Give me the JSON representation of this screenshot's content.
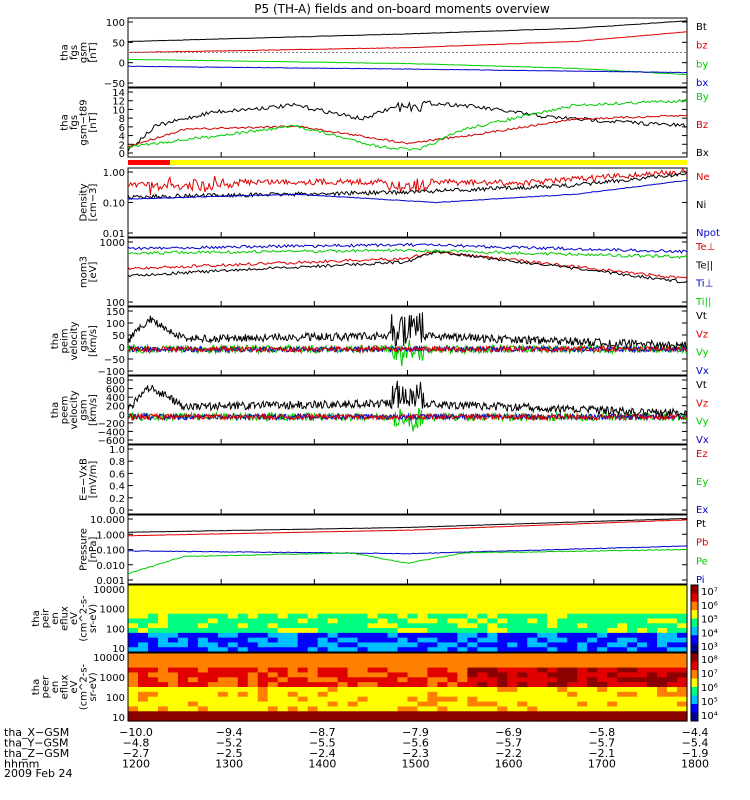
{
  "title": "P5 (TH-A) fields and on-board moments overview",
  "date_label": "2009 Feb 24",
  "panels": [
    {
      "id": "fgs_gsm",
      "ylabel": [
        "tha",
        "fgs",
        "gsm",
        "[nT]"
      ],
      "ticks": [
        "100",
        "50",
        "0",
        "−50"
      ],
      "legend": [
        {
          "label": "Bt",
          "color": "#000000"
        },
        {
          "label": "bz",
          "color": "#dd0000"
        },
        {
          "label": "by",
          "color": "#00cc00"
        },
        {
          "label": "bx",
          "color": "#0000cc"
        }
      ]
    },
    {
      "id": "fgs_t89",
      "ylabel": [
        "tha",
        "fgs",
        "gsm−t89",
        "[nT]"
      ],
      "ticks": [
        "14",
        "12",
        "10",
        "8",
        "6",
        "4",
        "2",
        "0"
      ],
      "legend": [
        {
          "label": "By",
          "color": "#00cc00"
        },
        {
          "label": "Bz",
          "color": "#cc0000"
        },
        {
          "label": "Bx",
          "color": "#000000"
        }
      ]
    },
    {
      "id": "density",
      "ylabel": [
        "Density",
        "[cm−3]"
      ],
      "ticks": [
        "1.00",
        "0.10",
        "0.01"
      ],
      "legend": [
        {
          "label": "Ne",
          "color": "#dd0000"
        },
        {
          "label": "Ni",
          "color": "#000000"
        },
        {
          "label": "Npot",
          "color": "#0000cc"
        }
      ]
    },
    {
      "id": "temp",
      "ylabel": [
        "mom3",
        "[eV]"
      ],
      "ticks": [
        "1000",
        "100"
      ],
      "legend": [
        {
          "label": "Te⊥",
          "color": "#dd0000"
        },
        {
          "label": "Te||",
          "color": "#000000"
        },
        {
          "label": "Ti⊥",
          "color": "#0000cc"
        },
        {
          "label": "Ti||",
          "color": "#00cc00"
        }
      ]
    },
    {
      "id": "peim_vel",
      "ylabel": [
        "tha",
        "peim",
        "velocity",
        "gsm",
        "[km/s]"
      ],
      "ticks": [
        "150",
        "100",
        "50",
        "0",
        "−50",
        "−100"
      ],
      "legend": [
        {
          "label": "Vt",
          "color": "#000000"
        },
        {
          "label": "Vz",
          "color": "#dd0000"
        },
        {
          "label": "Vy",
          "color": "#00cc00"
        },
        {
          "label": "Vx",
          "color": "#0000cc"
        }
      ]
    },
    {
      "id": "peem_vel",
      "ylabel": [
        "tha",
        "peem",
        "velocity",
        "gsm",
        "[km/s]"
      ],
      "ticks": [
        "800",
        "600",
        "400",
        "200",
        "0",
        "−200",
        "−400",
        "−600"
      ],
      "legend": [
        {
          "label": "Vt",
          "color": "#000000"
        },
        {
          "label": "Vz",
          "color": "#dd0000"
        },
        {
          "label": "Vy",
          "color": "#00cc00"
        },
        {
          "label": "Vx",
          "color": "#0000cc"
        }
      ]
    },
    {
      "id": "exb",
      "ylabel": [
        "E=−VxB",
        "[mV/m]"
      ],
      "ticks": [
        "1.0",
        "0.8",
        "0.6",
        "0.4",
        "0.2",
        "0.0"
      ],
      "legend": [
        {
          "label": "Ez",
          "color": "#dd0000"
        },
        {
          "label": "Ey",
          "color": "#00cc00"
        },
        {
          "label": "Ex",
          "color": "#0000cc"
        }
      ]
    },
    {
      "id": "pressure",
      "ylabel": [
        "Pressure",
        "[nPa]"
      ],
      "ticks": [
        "10.000",
        "1.000",
        "0.100",
        "0.010",
        "0.001"
      ],
      "legend": [
        {
          "label": "Pt",
          "color": "#000000"
        },
        {
          "label": "Pb",
          "color": "#dd0000"
        },
        {
          "label": "Pe",
          "color": "#00cc00"
        },
        {
          "label": "Pi",
          "color": "#0000cc"
        }
      ]
    },
    {
      "id": "peir_spec",
      "ylabel": [
        "tha",
        "peir",
        "en",
        "eflux",
        "eV",
        "(cm^2-s-",
        "sr-eV)"
      ],
      "ticks": [
        "10000",
        "1000",
        "100",
        "10"
      ],
      "cbar": [
        "10⁷",
        "10⁶",
        "10⁵",
        "10⁴",
        "10³"
      ]
    },
    {
      "id": "peer_spec",
      "ylabel": [
        "tha",
        "peer",
        "en",
        "eflux",
        "eV",
        "(cm^2-s-",
        "sr-eV)"
      ],
      "ticks": [
        "10000",
        "1000",
        "100",
        "10"
      ],
      "cbar": [
        "10⁸",
        "10⁷",
        "10⁶",
        "10⁵",
        "10⁴"
      ]
    }
  ],
  "xaxis": {
    "rows": [
      {
        "label": "tha_X−GSM",
        "values": [
          "−10.0",
          "−9.4",
          "−8.7",
          "−7.9",
          "−6.9",
          "−5.8",
          "−4.4"
        ]
      },
      {
        "label": "tha_Y−GSM",
        "values": [
          "−4.8",
          "−5.2",
          "−5.5",
          "−5.6",
          "−5.7",
          "−5.7",
          "−5.4"
        ]
      },
      {
        "label": "tha_Z−GSM",
        "values": [
          "−2.7",
          "−2.5",
          "−2.4",
          "−2.3",
          "−2.2",
          "−2.1",
          "−1.9"
        ]
      },
      {
        "label": "hhmm",
        "values": [
          "1200",
          "1300",
          "1400",
          "1500",
          "1600",
          "1700",
          "1800"
        ]
      }
    ]
  },
  "chart_data": {
    "type": "line",
    "title": "P5 (TH-A) fields and on-board moments overview",
    "x": [
      "1200",
      "1300",
      "1400",
      "1500",
      "1600",
      "1700",
      "1800"
    ],
    "series": [
      {
        "name": "Bt",
        "values": [
          42,
          47,
          53,
          58,
          65,
          75,
          95
        ]
      },
      {
        "name": "bz",
        "values": [
          12,
          18,
          23,
          28,
          34,
          43,
          62
        ]
      },
      {
        "name": "by",
        "values": [
          -10,
          -12,
          -16,
          -21,
          -29,
          -36,
          -50
        ]
      },
      {
        "name": "bx",
        "values": [
          -20,
          -22,
          -24,
          -27,
          -31,
          -34,
          -38
        ]
      },
      {
        "name": "Ni",
        "values": [
          0.15,
          0.2,
          0.22,
          0.18,
          0.22,
          0.3,
          0.85
        ]
      },
      {
        "name": "Pt",
        "values": [
          0.5,
          0.65,
          0.85,
          1.0,
          1.5,
          2.2,
          4.5
        ]
      },
      {
        "name": "Pb",
        "values": [
          0.35,
          0.5,
          0.7,
          0.9,
          1.3,
          2.0,
          4.0
        ]
      },
      {
        "name": "Pi",
        "values": [
          0.12,
          0.13,
          0.12,
          0.1,
          0.12,
          0.12,
          0.15
        ]
      },
      {
        "name": "Pe",
        "values": [
          0.03,
          0.07,
          0.09,
          0.04,
          0.07,
          0.08,
          0.1
        ]
      }
    ]
  }
}
